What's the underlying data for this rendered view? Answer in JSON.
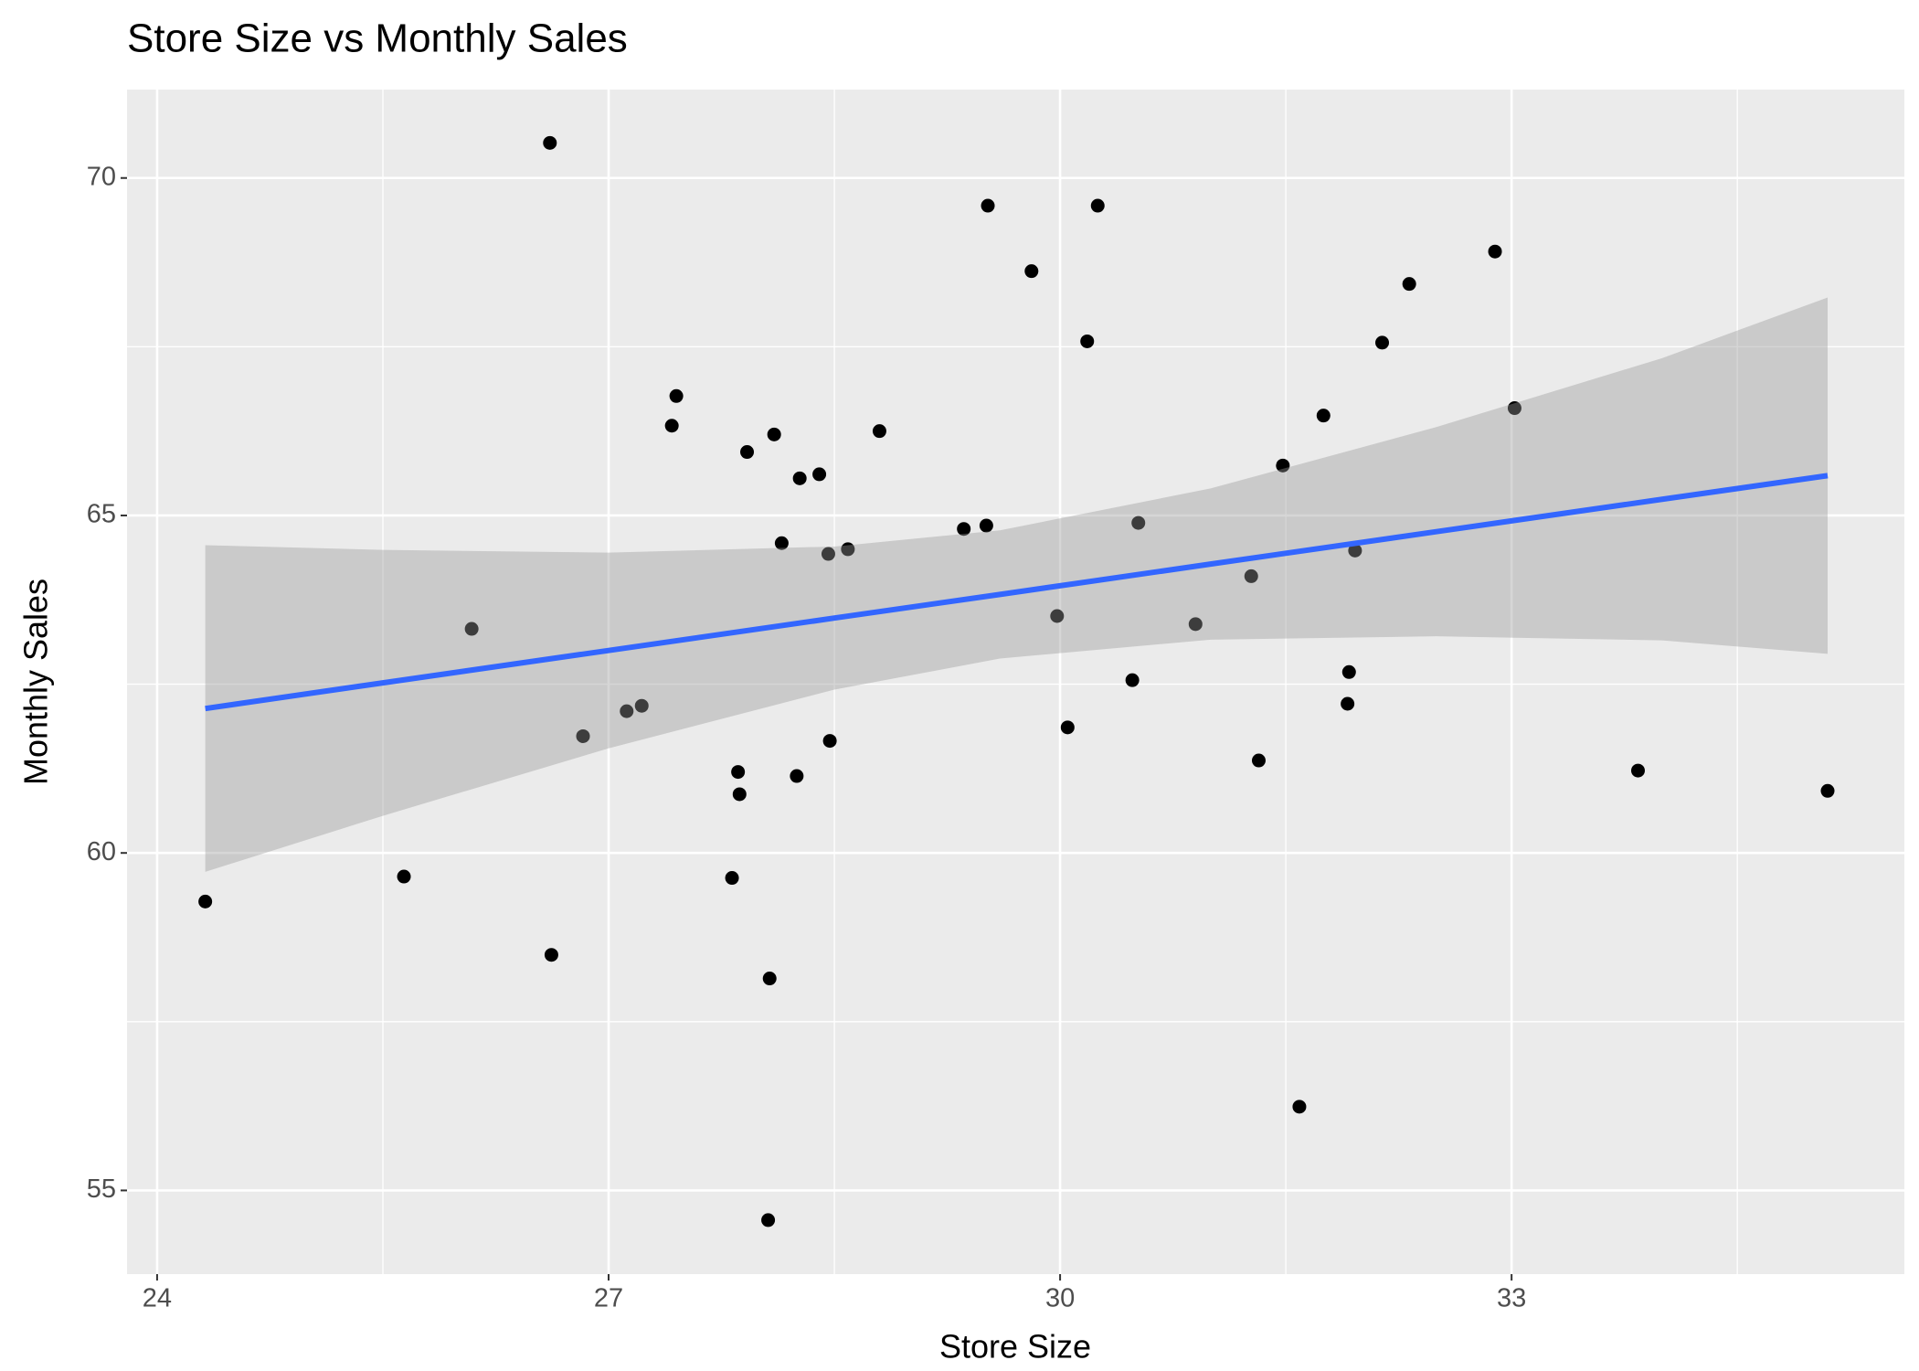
{
  "chart_data": {
    "type": "scatter",
    "title": "Store Size vs Monthly Sales",
    "x_label": "Store Size",
    "y_label": "Monthly Sales",
    "x": [
      24.32,
      25.64,
      26.09,
      26.61,
      26.62,
      26.83,
      27.12,
      27.22,
      27.42,
      27.45,
      27.82,
      27.86,
      27.87,
      27.92,
      28.06,
      28.07,
      28.1,
      28.15,
      28.25,
      28.27,
      28.4,
      28.46,
      28.47,
      28.59,
      28.8,
      29.36,
      29.51,
      29.52,
      29.81,
      29.98,
      30.05,
      30.18,
      30.25,
      30.48,
      30.52,
      30.9,
      31.27,
      31.32,
      31.48,
      31.59,
      31.75,
      31.91,
      31.92,
      31.96,
      32.14,
      32.32,
      32.89,
      33.02,
      33.84,
      35.1
    ],
    "values": [
      59.28,
      59.65,
      63.32,
      70.52,
      58.49,
      61.73,
      62.1,
      62.18,
      66.33,
      66.77,
      59.63,
      61.2,
      60.87,
      65.94,
      54.56,
      58.14,
      66.2,
      64.59,
      61.14,
      65.55,
      65.61,
      64.43,
      61.66,
      64.5,
      66.25,
      64.8,
      64.85,
      69.59,
      68.62,
      63.51,
      61.86,
      67.58,
      69.59,
      62.56,
      64.89,
      63.39,
      64.1,
      61.37,
      65.74,
      56.24,
      66.48,
      62.21,
      62.68,
      64.48,
      67.56,
      68.43,
      68.91,
      66.59,
      61.22,
      60.92
    ],
    "color": "#000000",
    "smooth": {
      "color": "#3366ff",
      "band_color": "#999999",
      "x": [
        24.32,
        25.5,
        27,
        28.5,
        29.6,
        31,
        32.5,
        34,
        35.1
      ],
      "fit": [
        62.14,
        62.52,
        63.0,
        63.48,
        63.83,
        64.28,
        64.76,
        65.24,
        65.59
      ],
      "lower": [
        59.72,
        60.55,
        61.55,
        62.42,
        62.88,
        63.16,
        63.21,
        63.15,
        62.95
      ],
      "upper": [
        64.56,
        64.49,
        64.45,
        64.54,
        64.78,
        65.4,
        66.31,
        67.33,
        68.23
      ]
    },
    "xlim": [
      23.8,
      35.61
    ],
    "ylim": [
      53.76,
      71.31
    ],
    "xticks": [
      24,
      27,
      30,
      33
    ],
    "yticks": [
      55,
      60,
      65,
      70
    ],
    "grid": true
  }
}
